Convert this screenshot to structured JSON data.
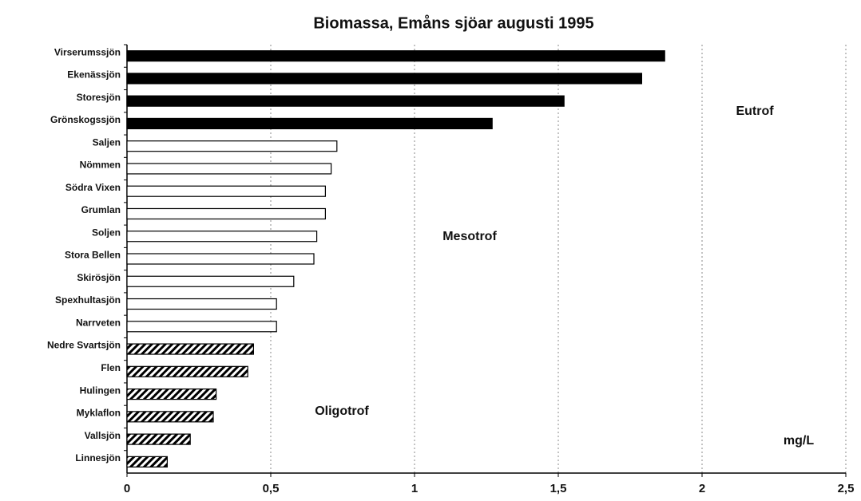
{
  "chart_data": {
    "type": "bar",
    "orientation": "horizontal",
    "title": "Biomassa, Emåns sjöar augusti 1995",
    "categories": [
      "Virserumssjön",
      "Ekenässjön",
      "Storesjön",
      "Grönskogssjön",
      "Saljen",
      "Nömmen",
      "Södra Vixen",
      "Grumlan",
      "Soljen",
      "Stora Bellen",
      "Skirösjön",
      "Spexhultasjön",
      "Narrveten",
      "Nedre Svartsjön",
      "Flen",
      "Hulingen",
      "Myklaflon",
      "Vallsjön",
      "Linnesjön"
    ],
    "values": [
      1.87,
      1.79,
      1.52,
      1.27,
      0.73,
      0.71,
      0.69,
      0.69,
      0.66,
      0.65,
      0.58,
      0.52,
      0.52,
      0.44,
      0.42,
      0.31,
      0.3,
      0.22,
      0.14
    ],
    "fills": [
      "solid",
      "solid",
      "solid",
      "solid",
      "open",
      "open",
      "open",
      "open",
      "open",
      "open",
      "open",
      "open",
      "open",
      "hatched",
      "hatched",
      "hatched",
      "hatched",
      "hatched",
      "hatched"
    ],
    "color": "#000000",
    "xlim": [
      0,
      2.5
    ],
    "xticks": [
      0,
      {
        "value": 0.5,
        "label": "0,5"
      },
      1,
      {
        "value": 1.5,
        "label": "1,5"
      },
      2,
      {
        "value": 2.5,
        "label": "2,5"
      }
    ],
    "grid": true,
    "annotations": [
      "Eutrof",
      "Mesotrof",
      "Oligotrof",
      "mg/L"
    ]
  }
}
